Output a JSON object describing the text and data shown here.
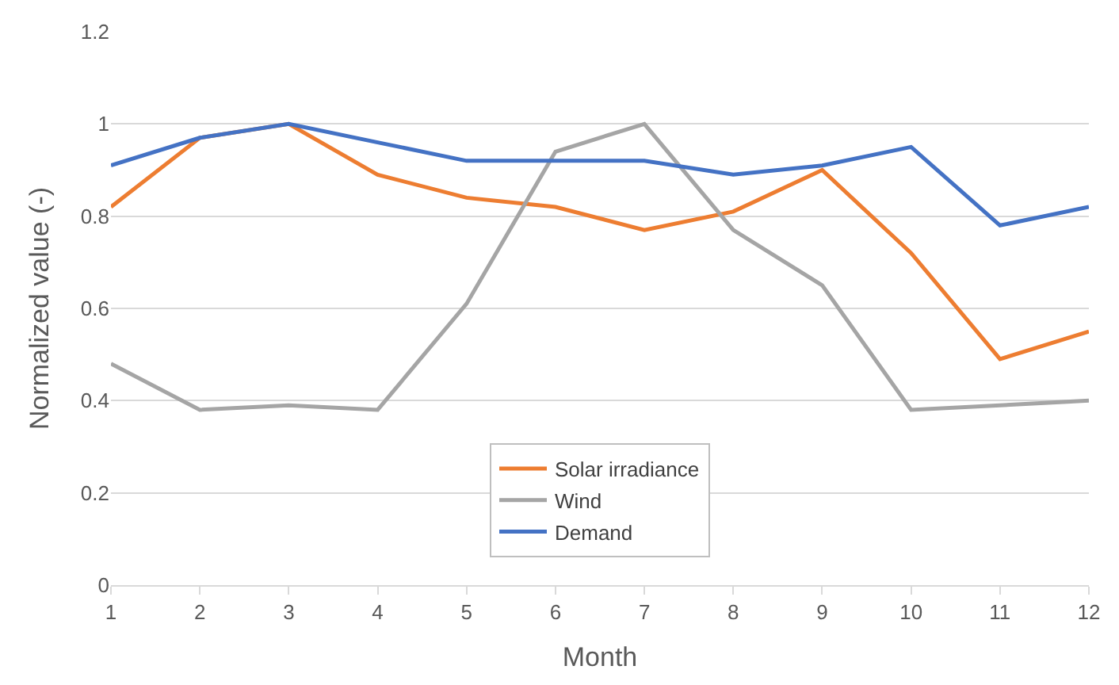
{
  "chart_data": {
    "type": "line",
    "xlabel": "Month",
    "ylabel": "Normalized value (-)",
    "x": [
      1,
      2,
      3,
      4,
      5,
      6,
      7,
      8,
      9,
      10,
      11,
      12
    ],
    "xlim": [
      1,
      12
    ],
    "xticks": [
      1,
      2,
      3,
      4,
      5,
      6,
      7,
      8,
      9,
      10,
      11,
      12
    ],
    "ylim": [
      0,
      1.2
    ],
    "yticks": [
      0,
      0.2,
      0.4,
      0.6,
      0.8,
      1,
      1.2
    ],
    "grid": "y",
    "legend": "bottom",
    "marker": "none",
    "line_style": "solid",
    "series": [
      {
        "name": "Solar irradiance",
        "color": "#ed7d31",
        "values": [
          0.82,
          0.97,
          1.0,
          0.89,
          0.84,
          0.82,
          0.77,
          0.81,
          0.9,
          0.72,
          0.49,
          0.55
        ]
      },
      {
        "name": "Wind",
        "color": "#a5a5a5",
        "values": [
          0.48,
          0.38,
          0.39,
          0.38,
          0.61,
          0.94,
          1.0,
          0.77,
          0.65,
          0.38,
          0.39,
          0.4
        ]
      },
      {
        "name": "Demand",
        "color": "#4472c4",
        "values": [
          0.91,
          0.97,
          1.0,
          0.96,
          0.92,
          0.92,
          0.92,
          0.89,
          0.91,
          0.95,
          0.78,
          0.82
        ]
      }
    ]
  }
}
